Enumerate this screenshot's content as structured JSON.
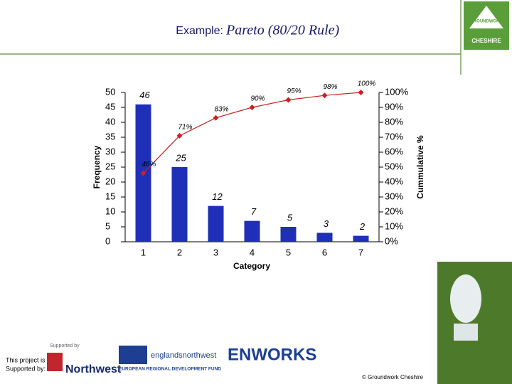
{
  "header": {
    "title_lead": "Example:",
    "title_main": "Pareto (80/20 Rule)"
  },
  "logo": {
    "top": "GROUNDWORK",
    "bottom": "CHESHIRE"
  },
  "chart_data": {
    "type": "pareto",
    "x_label": "Category",
    "y_label": "Frequency",
    "y2_label": "Cummulative %",
    "categories": [
      "1",
      "2",
      "3",
      "4",
      "5",
      "6",
      "7"
    ],
    "series": [
      {
        "type": "bar",
        "color": "#1f2fb8",
        "values": [
          46,
          25,
          12,
          7,
          5,
          3,
          2
        ]
      },
      {
        "type": "line",
        "axis": "y2",
        "color": "#cc2020",
        "values": [
          46,
          71,
          83,
          90,
          95,
          98,
          100
        ],
        "value_labels": [
          "46%",
          "71%",
          "83%",
          "90%",
          "95%",
          "98%",
          "100%"
        ]
      }
    ],
    "ylim": [
      0,
      50
    ],
    "yticks": [
      0,
      5,
      10,
      15,
      20,
      25,
      30,
      35,
      40,
      45,
      50
    ],
    "y2lim": [
      0,
      100
    ],
    "y2ticks": [
      {
        "value": 0,
        "label": "0%"
      },
      {
        "value": 10,
        "label": "10%"
      },
      {
        "value": 20,
        "label": "20%"
      },
      {
        "value": 30,
        "label": "30%"
      },
      {
        "value": 40,
        "label": "40%"
      },
      {
        "value": 50,
        "label": "50%"
      },
      {
        "value": 60,
        "label": "60%"
      },
      {
        "value": 70,
        "label": "70%"
      },
      {
        "value": 80,
        "label": "80%"
      },
      {
        "value": 90,
        "label": "90%"
      },
      {
        "value": 100,
        "label": "100%"
      }
    ]
  },
  "footer": {
    "project": [
      "This project is",
      "Supported by:"
    ],
    "supported": "Supported by",
    "northwest": "Northwest",
    "england": "englandsnorthwest",
    "erdf": "EUROPEAN REGIONAL DEVELOPMENT FUND",
    "enworks": "ENWORKS",
    "copyright": "© Groundwork Cheshire"
  }
}
